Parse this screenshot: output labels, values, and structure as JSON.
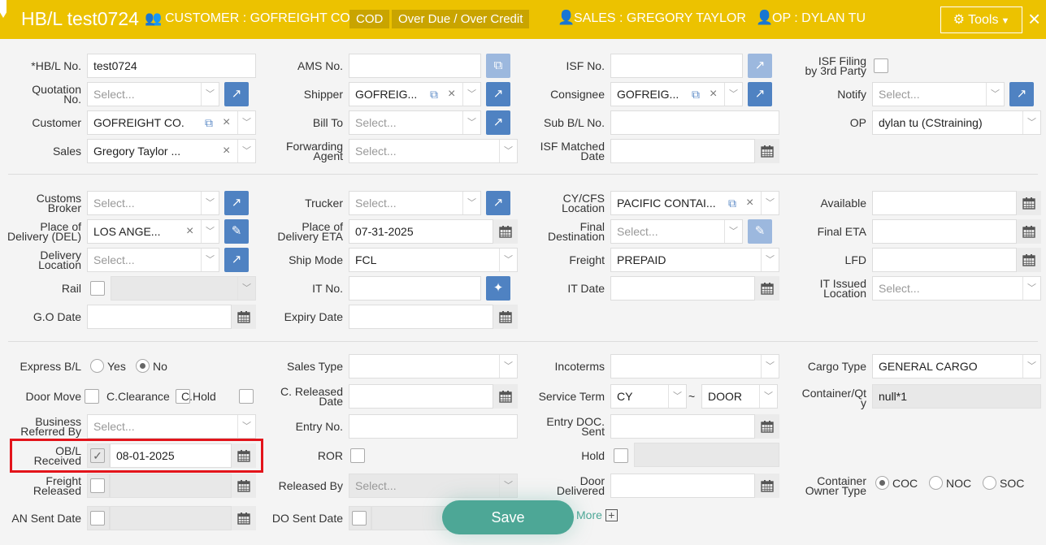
{
  "header": {
    "title": "HB/L test0724",
    "customer": "CUSTOMER : GOFREIGHT CO.",
    "badges": [
      "COD",
      "Over Due / Over Credit"
    ],
    "sales": "SALES : GREGORY TAYLOR",
    "op": "OP : DYLAN TU",
    "tools_label": "Tools",
    "close_label": "×",
    "bg_color": "#ecc200"
  },
  "form": {
    "sections": [
      {
        "columns": [
          [
            {
              "label": "*HB/L No.",
              "type": "text",
              "value": "test0724"
            },
            {
              "label": "Quotation\nNo.",
              "type": "select",
              "placeholder": "Select...",
              "btn": "arrow-icon"
            },
            {
              "label": "Customer",
              "type": "select",
              "value": "GOFREIGHT CO.",
              "edit": true,
              "clear": true
            },
            {
              "label": "Sales",
              "type": "select",
              "value": "Gregory Taylor ...",
              "clear": true
            }
          ],
          [
            {
              "label": "AMS No.",
              "type": "text",
              "btn": "copy-icon",
              "light": true
            },
            {
              "label": "Shipper",
              "type": "select",
              "value": "GOFREIG...",
              "edit": true,
              "clear": true,
              "btn": "arrow-icon"
            },
            {
              "label": "Bill To",
              "type": "select",
              "placeholder": "Select...",
              "btn": "arrow-icon"
            },
            {
              "label": "Forwarding\nAgent",
              "type": "select",
              "placeholder": "Select..."
            }
          ],
          [
            {
              "label": "ISF No.",
              "type": "text",
              "btn": "share-icon",
              "light": true
            },
            {
              "label": "Consignee",
              "type": "select",
              "value": "GOFREIG...",
              "edit": true,
              "clear": true,
              "btn": "arrow-icon"
            },
            {
              "label": "Sub B/L No.",
              "type": "text"
            },
            {
              "label": "ISF Matched\nDate",
              "type": "date"
            }
          ],
          [
            {
              "label": "ISF Filing\nby 3rd Party",
              "type": "check"
            },
            {
              "label": "Notify",
              "type": "select",
              "placeholder": "Select...",
              "btn": "arrow-icon"
            },
            {
              "label": "OP",
              "type": "select",
              "value": "dylan tu (CStraining)"
            },
            null
          ]
        ]
      },
      {
        "columns": [
          [
            {
              "label": "Customs\nBroker",
              "type": "select",
              "placeholder": "Select...",
              "btn": "arrow-icon"
            },
            {
              "label": "Place of\nDelivery (DEL)",
              "type": "select",
              "value": "LOS ANGE...",
              "clear": true,
              "btn": "pencil-icon"
            },
            {
              "label": "Delivery\nLocation",
              "type": "select",
              "placeholder": "Select...",
              "btn": "arrow-icon"
            },
            {
              "label": "Rail",
              "type": "checkselect"
            },
            {
              "label": "G.O Date",
              "type": "date"
            }
          ],
          [
            {
              "label": "Trucker",
              "type": "select",
              "placeholder": "Select...",
              "btn": "arrow-icon"
            },
            {
              "label": "Place of\nDelivery ETA",
              "type": "date",
              "value": "07-31-2025"
            },
            {
              "label": "Ship Mode",
              "type": "select",
              "value": "FCL"
            },
            {
              "label": "IT No.",
              "type": "text",
              "btn": "wand-icon"
            },
            {
              "label": "Expiry Date",
              "type": "date"
            }
          ],
          [
            {
              "label": "CY/CFS\nLocation",
              "type": "select",
              "value": "PACIFIC CONTAI...",
              "edit": true,
              "clear": true
            },
            {
              "label": "Final\nDestination",
              "type": "select",
              "placeholder": "Select...",
              "btn": "pencil-icon",
              "light": true
            },
            {
              "label": "Freight",
              "type": "select",
              "value": "PREPAID"
            },
            {
              "label": "IT Date",
              "type": "date"
            },
            null
          ],
          [
            {
              "label": "Available",
              "type": "date"
            },
            {
              "label": "Final ETA",
              "type": "date"
            },
            {
              "label": "LFD",
              "type": "date"
            },
            {
              "label": "IT Issued\nLocation",
              "type": "select",
              "placeholder": "Select..."
            },
            null
          ]
        ]
      },
      {
        "columns": [
          [
            {
              "label": "Express B/L",
              "type": "radios",
              "options": [
                "Yes",
                "No"
              ],
              "selected": 1
            },
            {
              "label": "Door Move",
              "type": "checks",
              "options": [
                "C.Clearance",
                "C.Hold"
              ]
            },
            {
              "label": "Business\nReferred By",
              "type": "select",
              "placeholder": "Select..."
            },
            {
              "label": "OB/L\nReceived",
              "type": "checkdate",
              "checked": true,
              "value": "08-01-2025"
            },
            {
              "label": "Freight\nReleased",
              "type": "checkdate",
              "disabled": true
            },
            {
              "label": "AN Sent Date",
              "type": "checkdate",
              "disabled": true
            }
          ],
          [
            {
              "label": "Sales Type",
              "type": "select"
            },
            {
              "label": "C. Released\nDate",
              "type": "date"
            },
            {
              "label": "Entry No.",
              "type": "text"
            },
            {
              "label": "ROR",
              "type": "check"
            },
            {
              "label": "Released By",
              "type": "select",
              "placeholder": "Select...",
              "disabled": true
            },
            {
              "label": "DO Sent Date",
              "type": "checkdate",
              "disabled": true
            }
          ],
          [
            {
              "label": "Incoterms",
              "type": "select"
            },
            {
              "label": "Service Term",
              "type": "range",
              "from": "CY",
              "sep": "~",
              "to": "DOOR"
            },
            {
              "label": "Entry DOC.\nSent",
              "type": "date"
            },
            {
              "label": "Hold",
              "type": "checkfield"
            },
            {
              "label": "Door\nDelivered",
              "type": "date"
            },
            null
          ],
          [
            {
              "label": "Cargo Type",
              "type": "select",
              "value": "GENERAL CARGO"
            },
            {
              "label": "Container/Qt\ny",
              "type": "readonly",
              "value": "null*1"
            },
            null,
            null,
            {
              "label": "Container\nOwner Type",
              "type": "radios",
              "options": [
                "COC",
                "NOC",
                "SOC"
              ],
              "selected": 0
            },
            null
          ]
        ]
      }
    ]
  },
  "footer": {
    "save_label": "Save",
    "more_label": "More",
    "more_icon": "+"
  }
}
